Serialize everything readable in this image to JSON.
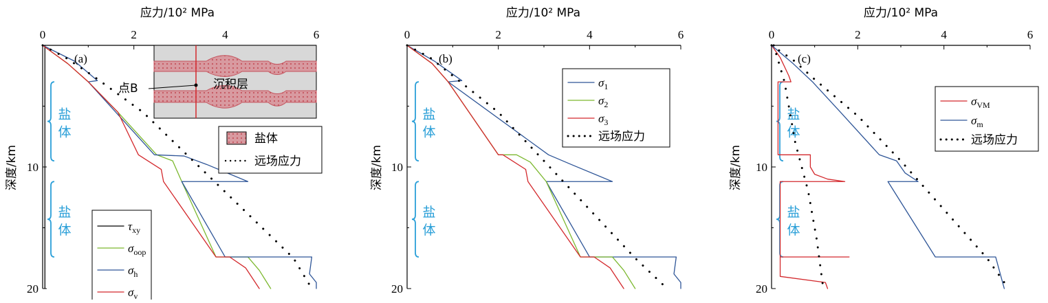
{
  "chart_data": [
    {
      "type": "line",
      "panel_label": "(a)",
      "xlabel": "应力/10² MPa",
      "ylabel": "深度/km",
      "xlim": [
        0,
        6
      ],
      "ylim": [
        20,
        0
      ],
      "xticks": [
        "0",
        "2",
        "4",
        "6"
      ],
      "yticks": [
        "10",
        "20"
      ],
      "salt_labels": [
        "盐体",
        "盐体"
      ],
      "salt_ranges": [
        [
          3.0,
          9.5
        ],
        [
          11.2,
          17.4
        ]
      ],
      "inset": {
        "salt_legend": "盐体",
        "sediment_label": "沉积层",
        "point_label": "点B"
      },
      "far_field_label": "远场应力",
      "series": [
        {
          "name": "τxy",
          "label_main": "τ",
          "label_sub": "xy",
          "color": "#000000",
          "x": [
            0.05,
            0.05,
            0.05,
            0.05,
            0.05,
            0.05
          ],
          "y": [
            0,
            4,
            8,
            12,
            16,
            20
          ]
        },
        {
          "name": "σoop",
          "label_main": "σ",
          "label_sub": "oop",
          "color": "#7cb82f",
          "x": [
            0,
            0.55,
            1.0,
            1.65,
            2.5,
            2.85,
            3.05,
            3.8,
            4.5,
            4.75,
            5.0
          ],
          "y": [
            0,
            1.5,
            3.0,
            5.5,
            9.0,
            9.5,
            11.2,
            17.4,
            17.4,
            18.5,
            20.0
          ]
        },
        {
          "name": "σh",
          "label_main": "σ",
          "label_sub": "h",
          "color": "#2e5597",
          "x": [
            0,
            0.7,
            1.2,
            1.0,
            1.0,
            2.45,
            3.1,
            3.6,
            4.5,
            3.05,
            4.0,
            5.9,
            5.85,
            6.0,
            6.0
          ],
          "y": [
            0,
            1.3,
            2.9,
            3.0,
            3.0,
            9.0,
            9.1,
            9.8,
            11.2,
            11.2,
            17.4,
            17.4,
            18.8,
            19.5,
            20.0
          ]
        },
        {
          "name": "σv",
          "label_main": "σ",
          "label_sub": "v",
          "color": "#d3282c",
          "x": [
            0,
            0.55,
            1.0,
            1.65,
            2.1,
            2.6,
            2.65,
            3.8,
            4.1,
            4.45,
            4.75
          ],
          "y": [
            0,
            1.5,
            3.0,
            5.5,
            9.0,
            10.2,
            11.2,
            17.4,
            17.4,
            18.3,
            20.0
          ]
        },
        {
          "name": "远场应力",
          "style": "dotted",
          "color": "#000000",
          "x": [
            0,
            0.5,
            1.1,
            2.2,
            3.3,
            4.4,
            5.5,
            5.9
          ],
          "y": [
            0,
            1.0,
            2.5,
            5.5,
            9.5,
            13.5,
            17.5,
            20.0
          ]
        }
      ]
    },
    {
      "type": "line",
      "panel_label": "(b)",
      "xlabel": "应力/10² MPa",
      "ylabel": "深度/km",
      "xlim": [
        0,
        6
      ],
      "ylim": [
        20,
        0
      ],
      "xticks": [
        "0",
        "2",
        "4",
        "6"
      ],
      "yticks": [
        "10",
        "20"
      ],
      "salt_labels": [
        "盐体",
        "盐体"
      ],
      "salt_ranges": [
        [
          3.0,
          9.5
        ],
        [
          11.2,
          17.4
        ]
      ],
      "far_field_label": "远场应力",
      "series": [
        {
          "name": "σ1",
          "label_main": "σ",
          "label_sub": "1",
          "color": "#2e5597",
          "x": [
            0,
            0.6,
            1.2,
            0.9,
            0.9,
            3.1,
            3.6,
            4.5,
            3.05,
            4.0,
            5.9,
            5.85,
            6.0,
            6.0
          ],
          "y": [
            0,
            1.3,
            2.9,
            3.0,
            3.0,
            9.0,
            9.8,
            11.2,
            11.2,
            17.4,
            17.4,
            18.8,
            19.5,
            20.0
          ]
        },
        {
          "name": "σ2",
          "label_main": "σ",
          "label_sub": "2",
          "color": "#7cb82f",
          "x": [
            0,
            0.55,
            0.9,
            2.0,
            2.4,
            2.7,
            3.05,
            3.8,
            4.5,
            4.75,
            5.0
          ],
          "y": [
            0,
            1.5,
            3.0,
            9.0,
            9.0,
            9.6,
            11.2,
            17.4,
            17.4,
            18.5,
            20.0
          ]
        },
        {
          "name": "σ3",
          "label_main": "σ",
          "label_sub": "3",
          "color": "#d3282c",
          "x": [
            0,
            0.55,
            0.9,
            2.0,
            2.1,
            2.6,
            2.65,
            3.8,
            4.1,
            4.45,
            4.75
          ],
          "y": [
            0,
            1.5,
            3.0,
            9.0,
            9.0,
            10.2,
            11.2,
            17.4,
            17.4,
            18.3,
            20.0
          ]
        },
        {
          "name": "远场应力",
          "style": "dotted",
          "color": "#000000",
          "x": [
            0,
            0.5,
            1.0,
            2.0,
            3.0,
            4.0,
            5.0,
            5.7
          ],
          "y": [
            0,
            1.0,
            2.5,
            5.5,
            9.5,
            13.5,
            17.5,
            20.0
          ]
        }
      ]
    },
    {
      "type": "line",
      "panel_label": "(c)",
      "xlabel": "应力/10² MPa",
      "ylabel": "深度/km",
      "xlim": [
        0,
        6
      ],
      "ylim": [
        20,
        0
      ],
      "xticks": [
        "0",
        "2",
        "4",
        "6"
      ],
      "yticks": [
        "10",
        "20"
      ],
      "salt_labels": [
        "盐体",
        "盐体"
      ],
      "salt_ranges": [
        [
          3.0,
          9.5
        ],
        [
          11.2,
          17.4
        ]
      ],
      "far_field_label": "远场应力",
      "series": [
        {
          "name": "σVM",
          "label_main": "σ",
          "label_sub": "VM",
          "color": "#d3282c",
          "x": [
            0,
            0.2,
            0.4,
            0.45,
            0.15,
            0.15,
            0.9,
            0.9,
            1.0,
            1.3,
            1.7,
            0.2,
            0.2,
            1.8,
            0.2,
            0.2,
            1.25,
            1.3
          ],
          "y": [
            0,
            1.0,
            2.5,
            3.0,
            3.0,
            9.0,
            9.0,
            10.0,
            10.6,
            11.0,
            11.2,
            11.2,
            17.4,
            17.4,
            17.4,
            19.0,
            19.5,
            20.0
          ]
        },
        {
          "name": "σm",
          "label_main": "σ",
          "label_sub": "m",
          "color": "#2e5597",
          "x": [
            0,
            0.5,
            0.95,
            1.6,
            2.5,
            2.9,
            3.1,
            3.4,
            2.7,
            3.8,
            5.2,
            5.4
          ],
          "y": [
            0,
            1.5,
            3.0,
            5.5,
            9.0,
            9.5,
            10.5,
            11.2,
            11.2,
            17.4,
            17.4,
            20.0
          ]
        },
        {
          "name": "远场应力",
          "style": "dotted",
          "color": "#000000",
          "x": [
            0,
            0.5,
            1.0,
            2.0,
            3.0,
            4.0,
            5.0,
            5.5
          ],
          "y": [
            0,
            1.2,
            2.8,
            5.8,
            9.5,
            13.5,
            17.5,
            20.0
          ]
        },
        {
          "name": "near-zero",
          "style": "dotted",
          "color": "#000000",
          "legend": false,
          "x": [
            0.05,
            0.3,
            0.55,
            0.85,
            1.05,
            1.2
          ],
          "y": [
            0,
            3.0,
            8.0,
            12.0,
            16.0,
            20.0
          ]
        }
      ]
    }
  ]
}
